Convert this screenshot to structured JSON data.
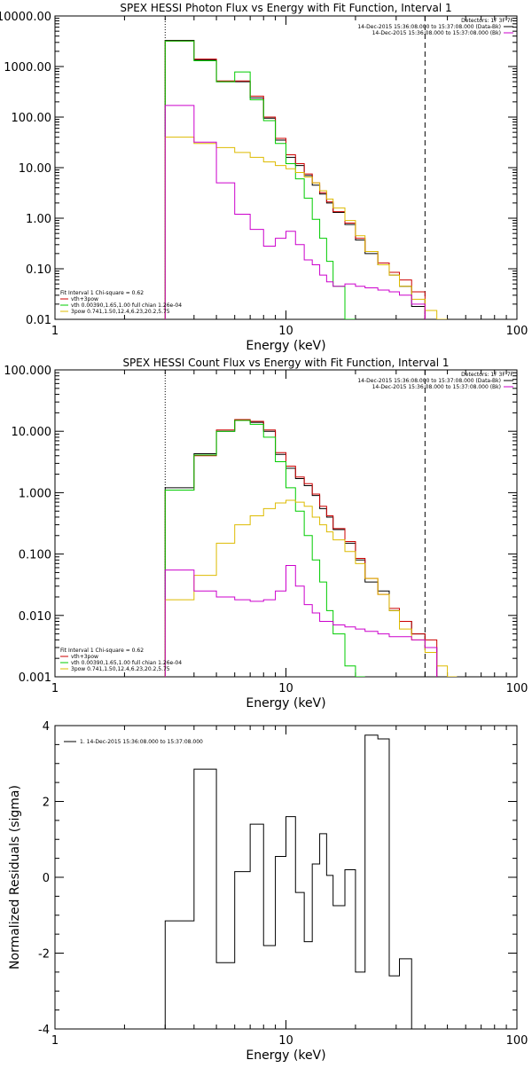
{
  "chart_data": [
    {
      "type": "line",
      "title": "SPEX HESSI Photon Flux vs Energy with Fit Function, Interval 1",
      "xlabel": "Energy (keV)",
      "ylabel": "",
      "xscale": "log",
      "yscale": "log",
      "xlim": [
        1,
        100
      ],
      "ylim": [
        0.01,
        10000
      ],
      "xticks": [
        "1",
        "10",
        "100"
      ],
      "yticks": [
        "10000.00",
        "1000.00",
        "100.00",
        "10.00",
        "1.00",
        "0.10",
        "0.01"
      ],
      "detectors": "Detectors: 1F 3F 7F",
      "legend_top": [
        {
          "text": "14-Dec-2015 15:36:08.000 to 15:37:08.000 (Data-Bk)",
          "color": "#000000"
        },
        {
          "text": "14-Dec-2015 15:36:08.000 to 15:37:08.000 (Bk)",
          "color": "#cc00cc"
        }
      ],
      "legend_bottom": [
        {
          "text": "Fit Interval 1   Chi-square = 0.62",
          "color": "#000000"
        },
        {
          "text": "vth+3pow",
          "color": "#cc0000"
        },
        {
          "text": "vth 0.00390,1.65,1.00  full chian 1.26e-04",
          "color": "#00cc00"
        },
        {
          "text": "3pow 0.741,1.50,12.4,6.23,20.2,5.75",
          "color": "#ddbb00"
        }
      ],
      "vlines": [
        {
          "x": 3,
          "style": "dotted"
        },
        {
          "x": 40,
          "style": "dashed"
        }
      ],
      "bin_edges": [
        3,
        4,
        5,
        6,
        7,
        8,
        9,
        10,
        11,
        12,
        13,
        14,
        15,
        16,
        18,
        20,
        22,
        25,
        28,
        31,
        35,
        40,
        45,
        50
      ],
      "series": [
        {
          "name": "Data-Bk",
          "color": "#000000",
          "values": [
            3300,
            1350,
            500,
            500,
            240,
            95,
            35,
            16,
            11,
            7,
            4.5,
            3,
            2,
            1.3,
            0.75,
            0.37,
            0.2,
            0.12,
            0.075,
            0.045,
            0.018,
            null,
            null
          ]
        },
        {
          "name": "vth+3pow",
          "color": "#cc0000",
          "values": [
            3200,
            1400,
            520,
            520,
            260,
            100,
            38,
            18,
            12,
            7.5,
            5,
            3.2,
            2.1,
            1.35,
            0.8,
            0.4,
            0.22,
            0.13,
            0.085,
            0.06,
            0.035,
            null,
            null
          ]
        },
        {
          "name": "vth",
          "color": "#00cc00",
          "values": [
            3200,
            1300,
            500,
            780,
            220,
            85,
            30,
            12,
            6,
            2.5,
            0.95,
            0.4,
            0.14,
            0.045,
            0.01,
            null,
            null,
            null,
            null,
            null,
            null,
            null,
            null
          ]
        },
        {
          "name": "3pow",
          "color": "#ddbb00",
          "values": [
            40,
            30,
            25,
            20,
            16,
            13,
            11,
            9.5,
            8,
            6.5,
            5,
            3.5,
            2.4,
            1.6,
            0.9,
            0.45,
            0.22,
            0.12,
            0.075,
            0.045,
            0.025,
            0.015,
            0.01
          ]
        },
        {
          "name": "Bk",
          "color": "#cc00cc",
          "values": [
            170,
            32,
            5,
            1.2,
            0.6,
            0.28,
            0.4,
            0.55,
            0.3,
            0.15,
            0.12,
            0.075,
            0.055,
            0.045,
            0.05,
            0.045,
            0.042,
            0.038,
            0.035,
            0.03,
            0.02,
            null,
            null
          ]
        }
      ]
    },
    {
      "type": "line",
      "title": "SPEX HESSI Count Flux vs Energy with Fit Function, Interval 1",
      "xlabel": "Energy (keV)",
      "ylabel": "",
      "xscale": "log",
      "yscale": "log",
      "xlim": [
        1,
        100
      ],
      "ylim": [
        0.001,
        100
      ],
      "xticks": [
        "1",
        "10",
        "100"
      ],
      "yticks": [
        "100.000",
        "10.000",
        "1.000",
        "0.100",
        "0.010",
        "0.001"
      ],
      "detectors": "Detectors: 1F 3F 7F",
      "legend_top": [
        {
          "text": "14-Dec-2015 15:36:08.000 to 15:37:08.000 (Data-Bk)",
          "color": "#000000"
        },
        {
          "text": "14-Dec-2015 15:36:08.000 to 15:37:08.000 (Bk)",
          "color": "#cc00cc"
        }
      ],
      "legend_bottom": [
        {
          "text": "Fit Interval 1   Chi-square = 0.62",
          "color": "#000000"
        },
        {
          "text": "vth+3pow",
          "color": "#cc0000"
        },
        {
          "text": "vth 0.00390,1.65,1.00  full chian 1.26e-04",
          "color": "#00cc00"
        },
        {
          "text": "3pow 0.741,1.50,12.4,6.23,20.2,5.75",
          "color": "#ddbb00"
        }
      ],
      "vlines": [
        {
          "x": 3,
          "style": "dotted"
        },
        {
          "x": 40,
          "style": "dashed"
        }
      ],
      "bin_edges": [
        3,
        4,
        5,
        6,
        7,
        8,
        9,
        10,
        11,
        12,
        13,
        14,
        15,
        16,
        18,
        20,
        22,
        25,
        28,
        31,
        35,
        40,
        45,
        50,
        55
      ],
      "series": [
        {
          "name": "Data-Bk",
          "color": "#000000",
          "values": [
            1.2,
            4.3,
            10,
            15,
            14,
            10,
            4.2,
            2.5,
            1.7,
            1.3,
            0.9,
            0.55,
            0.4,
            0.25,
            0.15,
            0.08,
            0.035,
            0.025,
            0.012,
            0.008,
            0.005,
            0.003,
            null,
            null
          ]
        },
        {
          "name": "vth+3pow",
          "color": "#cc0000",
          "values": [
            1.1,
            4.0,
            10.5,
            15.5,
            14.5,
            10.5,
            4.5,
            2.7,
            1.8,
            1.4,
            0.95,
            0.6,
            0.42,
            0.26,
            0.16,
            0.085,
            0.04,
            0.022,
            0.013,
            0.008,
            0.005,
            0.004,
            null,
            null
          ]
        },
        {
          "name": "vth",
          "color": "#00cc00",
          "values": [
            1.1,
            4.1,
            10,
            15,
            13,
            8,
            3.2,
            1.2,
            0.5,
            0.2,
            0.08,
            0.035,
            0.012,
            0.005,
            0.0015,
            0.001,
            null,
            null,
            null,
            null,
            null,
            null,
            null,
            null
          ]
        },
        {
          "name": "3pow",
          "color": "#ddbb00",
          "values": [
            0.018,
            0.045,
            0.15,
            0.3,
            0.42,
            0.55,
            0.68,
            0.75,
            0.7,
            0.6,
            0.4,
            0.3,
            0.23,
            0.17,
            0.11,
            0.07,
            0.04,
            0.022,
            0.012,
            0.006,
            0.004,
            0.0025,
            0.0015,
            0.001
          ]
        },
        {
          "name": "Bk",
          "color": "#cc00cc",
          "values": [
            0.055,
            0.025,
            0.02,
            0.018,
            0.017,
            0.018,
            0.025,
            0.065,
            0.03,
            0.015,
            0.011,
            0.008,
            0.008,
            0.007,
            0.0065,
            0.006,
            0.0055,
            0.005,
            0.0045,
            0.0045,
            0.004,
            0.003,
            null,
            null
          ]
        }
      ]
    },
    {
      "type": "line",
      "title": "",
      "xlabel": "Energy (keV)",
      "ylabel": "Normalized Residuals (sigma)",
      "xscale": "log",
      "yscale": "linear",
      "xlim": [
        1,
        100
      ],
      "ylim": [
        -4,
        4
      ],
      "xticks": [
        "1",
        "10",
        "100"
      ],
      "yticks": [
        "4",
        "2",
        "0",
        "-2",
        "-4"
      ],
      "legend": [
        {
          "text": "1. 14-Dec-2015 15:36:08.000 to 15:37:08.000",
          "color": "#000000"
        }
      ],
      "bin_edges": [
        3,
        4,
        5,
        6,
        7,
        8,
        9,
        10,
        11,
        12,
        13,
        14,
        15,
        16,
        18,
        20,
        22,
        25,
        28,
        31,
        35,
        40
      ],
      "series": [
        {
          "name": "",
          "color": "#000000",
          "values": [
            -1.15,
            2.85,
            -2.25,
            0.15,
            1.4,
            -1.8,
            0.55,
            1.6,
            -0.4,
            -1.7,
            0.35,
            1.15,
            0.05,
            -0.75,
            0.2,
            -2.5,
            3.75,
            3.65,
            -2.6,
            -2.15
          ]
        }
      ]
    }
  ]
}
